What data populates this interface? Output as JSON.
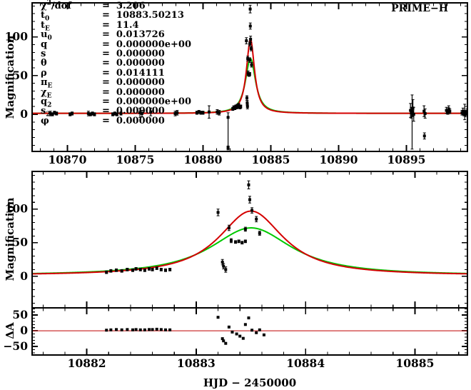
{
  "header": {
    "title_label": "PRIME−H"
  },
  "fit_parameters": {
    "rows": [
      {
        "label": "χ^2/dof",
        "value": "3.206"
      },
      {
        "label": "t_0",
        "value": "10883.50213"
      },
      {
        "label": "t_E",
        "value": "11.4"
      },
      {
        "label": "u_0",
        "value": "0.013726"
      },
      {
        "label": "q",
        "value": "0.000000e+00"
      },
      {
        "label": "s",
        "value": "0.000000"
      },
      {
        "label": "θ",
        "value": "0.000000"
      },
      {
        "label": "ρ",
        "value": "0.014111"
      },
      {
        "label": "π_E",
        "value": "0.000000"
      },
      {
        "label": "χ_E",
        "value": "0.000000"
      },
      {
        "label": "q_2",
        "value": "0.000000e+00"
      },
      {
        "label": "s_2",
        "value": "0.000000"
      },
      {
        "label": "φ",
        "value": "0.000000"
      }
    ]
  },
  "xlabel": "HJD − 2450000",
  "chart_data": [
    {
      "name": "full-lightcurve",
      "type": "scatter",
      "ylabel": "Magnification",
      "xlim": [
        10867.4,
        10899.5
      ],
      "ylim": [
        -48,
        144
      ],
      "xticks": [
        10870,
        10875,
        10880,
        10885,
        10890,
        10895
      ],
      "xtick_minor_step": 1,
      "yticks": [
        0,
        50,
        100
      ],
      "ytick_minor_step": 10,
      "show_xtick_labels": true,
      "curves": [
        {
          "name": "point-source-model",
          "color": "#00c800",
          "t0": 10883.50213,
          "peak": 72,
          "width": 0.48,
          "power": 1.1,
          "base": 1.2
        },
        {
          "name": "finite-source-model",
          "color": "#d40000",
          "t0": 10883.50213,
          "peak": 97,
          "width": 0.38,
          "power": 1.1,
          "base": 1.2
        }
      ],
      "points": [
        [
          10868.75,
          1,
          3
        ],
        [
          10868.9,
          0,
          2
        ],
        [
          10869.05,
          2,
          2
        ],
        [
          10869.2,
          1,
          2
        ],
        [
          10870.2,
          0,
          2
        ],
        [
          10870.35,
          1,
          2
        ],
        [
          10871.55,
          1,
          3
        ],
        [
          10871.7,
          0,
          2
        ],
        [
          10871.85,
          1,
          2
        ],
        [
          10872.0,
          0,
          2
        ],
        [
          10873.35,
          0,
          2
        ],
        [
          10873.5,
          1,
          2
        ],
        [
          10873.65,
          0,
          2
        ],
        [
          10873.95,
          1,
          2
        ],
        [
          10875.35,
          2,
          6
        ],
        [
          10875.5,
          1,
          4
        ],
        [
          10876.15,
          3,
          5
        ],
        [
          10877.95,
          1,
          3
        ],
        [
          10878.1,
          2,
          3
        ],
        [
          10879.55,
          2,
          2
        ],
        [
          10879.7,
          3,
          2
        ],
        [
          10879.85,
          2,
          2
        ],
        [
          10880.0,
          2,
          2
        ],
        [
          10880.45,
          3,
          8
        ],
        [
          10881.05,
          3,
          3
        ],
        [
          10881.2,
          2,
          3
        ],
        [
          10881.85,
          -4,
          6,
          42
        ],
        [
          10881.85,
          -43,
          2
        ],
        [
          10882.2,
          7,
          2
        ],
        [
          10882.28,
          9,
          2
        ],
        [
          10882.35,
          8,
          2
        ],
        [
          10882.42,
          10,
          2
        ],
        [
          10882.48,
          9,
          2
        ],
        [
          10882.53,
          11,
          2
        ],
        [
          10882.58,
          10,
          2
        ],
        [
          10882.63,
          12,
          2
        ],
        [
          10882.68,
          10,
          2
        ],
        [
          10882.73,
          9,
          2
        ],
        [
          10882.78,
          10,
          2
        ],
        [
          10883.2,
          95,
          4
        ],
        [
          10883.24,
          21,
          3
        ],
        [
          10883.26,
          15,
          3
        ],
        [
          10883.28,
          10,
          3
        ],
        [
          10883.3,
          72,
          3
        ],
        [
          10883.33,
          53,
          3
        ],
        [
          10883.36,
          52,
          2
        ],
        [
          10883.4,
          51,
          2
        ],
        [
          10883.44,
          52,
          2
        ],
        [
          10883.45,
          70,
          3
        ],
        [
          10883.46,
          91,
          3
        ],
        [
          10883.48,
          136,
          5
        ],
        [
          10883.49,
          114,
          4
        ],
        [
          10883.51,
          97,
          4
        ],
        [
          10883.55,
          85,
          3
        ],
        [
          10883.58,
          64,
          3
        ],
        [
          10895.3,
          5,
          9
        ],
        [
          10895.36,
          2,
          7
        ],
        [
          10895.42,
          3,
          22,
          48
        ],
        [
          10895.48,
          8,
          11
        ],
        [
          10895.54,
          0,
          9
        ],
        [
          10896.3,
          4,
          7
        ],
        [
          10896.38,
          1,
          6
        ],
        [
          10896.33,
          -28,
          4
        ],
        [
          10897.95,
          5,
          4
        ],
        [
          10898.05,
          3,
          3
        ],
        [
          10898.12,
          7,
          4
        ],
        [
          10898.2,
          4,
          3
        ],
        [
          10899.1,
          2,
          3
        ],
        [
          10899.17,
          4,
          4
        ],
        [
          10899.24,
          1,
          3
        ],
        [
          10899.3,
          3,
          10
        ],
        [
          10899.36,
          0,
          3
        ],
        [
          10899.42,
          2,
          3
        ],
        [
          10899.48,
          4,
          3
        ]
      ]
    },
    {
      "name": "peak-zoom",
      "type": "scatter",
      "ylabel": "Magnification",
      "xlim": [
        10881.5,
        10885.48
      ],
      "ylim": [
        -47,
        156
      ],
      "xticks": [
        10882,
        10883,
        10884,
        10885
      ],
      "xtick_minor_step": 0.2,
      "yticks": [
        0,
        50,
        100
      ],
      "ytick_minor_step": 10,
      "show_xtick_labels": false,
      "curves": [
        {
          "name": "point-source-model",
          "color": "#00c800",
          "t0": 10883.50213,
          "peak": 72,
          "width": 0.48,
          "power": 1.1,
          "base": 1.2
        },
        {
          "name": "finite-source-model",
          "color": "#d40000",
          "t0": 10883.50213,
          "peak": 97,
          "width": 0.38,
          "power": 1.1,
          "base": 1.2
        }
      ],
      "points": [
        [
          10882.18,
          6,
          2
        ],
        [
          10882.22,
          8,
          2
        ],
        [
          10882.27,
          9,
          2
        ],
        [
          10882.32,
          8,
          2
        ],
        [
          10882.37,
          10,
          2
        ],
        [
          10882.42,
          9,
          2
        ],
        [
          10882.45,
          11,
          2
        ],
        [
          10882.49,
          10,
          2
        ],
        [
          10882.53,
          9,
          2
        ],
        [
          10882.57,
          11,
          2
        ],
        [
          10882.6,
          10,
          2
        ],
        [
          10882.64,
          12,
          2
        ],
        [
          10882.68,
          10,
          2
        ],
        [
          10882.72,
          9,
          2
        ],
        [
          10882.76,
          10,
          2
        ],
        [
          10883.2,
          95,
          5
        ],
        [
          10883.24,
          21,
          4
        ],
        [
          10883.25,
          15,
          4
        ],
        [
          10883.27,
          10,
          4
        ],
        [
          10883.3,
          72,
          4
        ],
        [
          10883.32,
          53,
          3
        ],
        [
          10883.36,
          51,
          2
        ],
        [
          10883.39,
          52,
          2
        ],
        [
          10883.42,
          50,
          2
        ],
        [
          10883.45,
          52,
          2
        ],
        [
          10883.45,
          70,
          3
        ],
        [
          10883.48,
          136,
          6
        ],
        [
          10883.49,
          114,
          5
        ],
        [
          10883.51,
          98,
          4
        ],
        [
          10883.55,
          85,
          4
        ],
        [
          10883.58,
          64,
          3
        ]
      ]
    },
    {
      "name": "residuals",
      "type": "scatter",
      "ylabel": "ΔA",
      "xlim": [
        10881.5,
        10885.48
      ],
      "ylim": [
        -77,
        73
      ],
      "xticks": [
        10882,
        10883,
        10884,
        10885
      ],
      "xtick_minor_step": 0.2,
      "yticks": [
        -50,
        0,
        50
      ],
      "ytick_minor_step": 10,
      "show_xtick_labels": true,
      "hline": {
        "y": 0,
        "color": "#cc3333"
      },
      "curves": [],
      "points": [
        [
          10882.18,
          2,
          0
        ],
        [
          10882.22,
          3,
          0
        ],
        [
          10882.27,
          4,
          0
        ],
        [
          10882.32,
          3,
          0
        ],
        [
          10882.37,
          4,
          0
        ],
        [
          10882.42,
          3,
          0
        ],
        [
          10882.45,
          4,
          0
        ],
        [
          10882.49,
          3,
          0
        ],
        [
          10882.53,
          3,
          0
        ],
        [
          10882.57,
          4,
          0
        ],
        [
          10882.6,
          4,
          0
        ],
        [
          10882.64,
          5,
          0
        ],
        [
          10882.68,
          4,
          0
        ],
        [
          10882.72,
          3,
          0
        ],
        [
          10882.76,
          3,
          0
        ],
        [
          10883.2,
          43,
          0
        ],
        [
          10883.24,
          -25,
          0
        ],
        [
          10883.25,
          -32,
          0
        ],
        [
          10883.27,
          -40,
          0
        ],
        [
          10883.3,
          12,
          0
        ],
        [
          10883.33,
          -4,
          0
        ],
        [
          10883.37,
          -10,
          0
        ],
        [
          10883.4,
          -17,
          0
        ],
        [
          10883.43,
          -24,
          0
        ],
        [
          10883.45,
          20,
          0
        ],
        [
          10883.48,
          41,
          0
        ],
        [
          10883.51,
          2,
          0
        ],
        [
          10883.55,
          -6,
          0
        ],
        [
          10883.58,
          3,
          0
        ],
        [
          10883.62,
          -13,
          0
        ]
      ]
    }
  ]
}
